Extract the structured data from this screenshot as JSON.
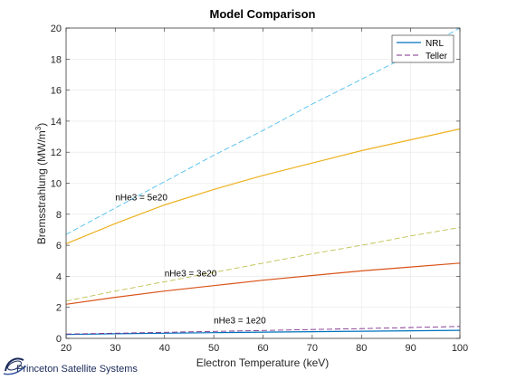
{
  "chart_data": {
    "type": "line",
    "title": "Model Comparison",
    "xlabel": "Electron Temperature (keV)",
    "ylabel_main": "Bremsstrahlung (MW/m",
    "ylabel_sup": "3",
    "ylabel_end": ")",
    "xlim": [
      20,
      100
    ],
    "ylim": [
      0,
      20
    ],
    "xticks": [
      20,
      30,
      40,
      50,
      60,
      70,
      80,
      90,
      100
    ],
    "yticks": [
      0,
      2,
      4,
      6,
      8,
      10,
      12,
      14,
      16,
      18,
      20
    ],
    "grid": true,
    "legend_position": "top-right",
    "legend": [
      {
        "label": "NRL",
        "color": "#0072BD",
        "dash": "solid"
      },
      {
        "label": "Teller",
        "color": "#7E2F8E",
        "dash": "dashed"
      }
    ],
    "series": [
      {
        "group": "nHe3 = 1e20",
        "model": "NRL",
        "color": "#0072BD",
        "dash": "solid",
        "x": [
          20,
          30,
          40,
          50,
          60,
          70,
          80,
          90,
          100
        ],
        "y": [
          0.25,
          0.3,
          0.33,
          0.37,
          0.4,
          0.43,
          0.46,
          0.49,
          0.52
        ]
      },
      {
        "group": "nHe3 = 1e20",
        "model": "Teller",
        "color": "#7E2F8E",
        "dash": "dashed",
        "x": [
          20,
          30,
          40,
          50,
          60,
          70,
          80,
          90,
          100
        ],
        "y": [
          0.28,
          0.33,
          0.39,
          0.45,
          0.51,
          0.57,
          0.63,
          0.7,
          0.77
        ]
      },
      {
        "group": "nHe3 = 3e20",
        "model": "NRL",
        "color": "#D95319",
        "dash": "solid",
        "x": [
          20,
          30,
          40,
          50,
          60,
          70,
          80,
          90,
          100
        ],
        "y": [
          2.2,
          2.65,
          3.05,
          3.4,
          3.75,
          4.05,
          4.35,
          4.6,
          4.85
        ]
      },
      {
        "group": "nHe3 = 3e20",
        "model": "Teller",
        "color": "#BFBF4F",
        "dash": "dashed",
        "x": [
          20,
          30,
          40,
          50,
          60,
          70,
          80,
          90,
          100
        ],
        "y": [
          2.4,
          3.05,
          3.65,
          4.25,
          4.85,
          5.45,
          6.0,
          6.6,
          7.15
        ]
      },
      {
        "group": "nHe3 = 5e20",
        "model": "NRL",
        "color": "#EDB120",
        "dash": "solid",
        "x": [
          20,
          30,
          40,
          50,
          60,
          70,
          80,
          90,
          100
        ],
        "y": [
          6.1,
          7.4,
          8.6,
          9.6,
          10.5,
          11.3,
          12.1,
          12.8,
          13.5
        ]
      },
      {
        "group": "nHe3 = 5e20",
        "model": "Teller",
        "color": "#4DBEEE",
        "dash": "dashed",
        "x": [
          20,
          30,
          40,
          50,
          60,
          70,
          80,
          90,
          100
        ],
        "y": [
          6.7,
          8.4,
          10.1,
          11.8,
          13.4,
          15.1,
          16.7,
          18.3,
          20.0
        ]
      }
    ],
    "annotations": [
      {
        "text": "nHe3 = 5e20",
        "x": 30,
        "y": 8.9
      },
      {
        "text": "nHe3 = 3e20",
        "x": 40,
        "y": 4.0
      },
      {
        "text": "nHe3 = 1e20",
        "x": 50,
        "y": 0.95
      }
    ]
  },
  "logo": {
    "text": "Princeton Satellite Systems",
    "color": "#1a2a5a"
  }
}
